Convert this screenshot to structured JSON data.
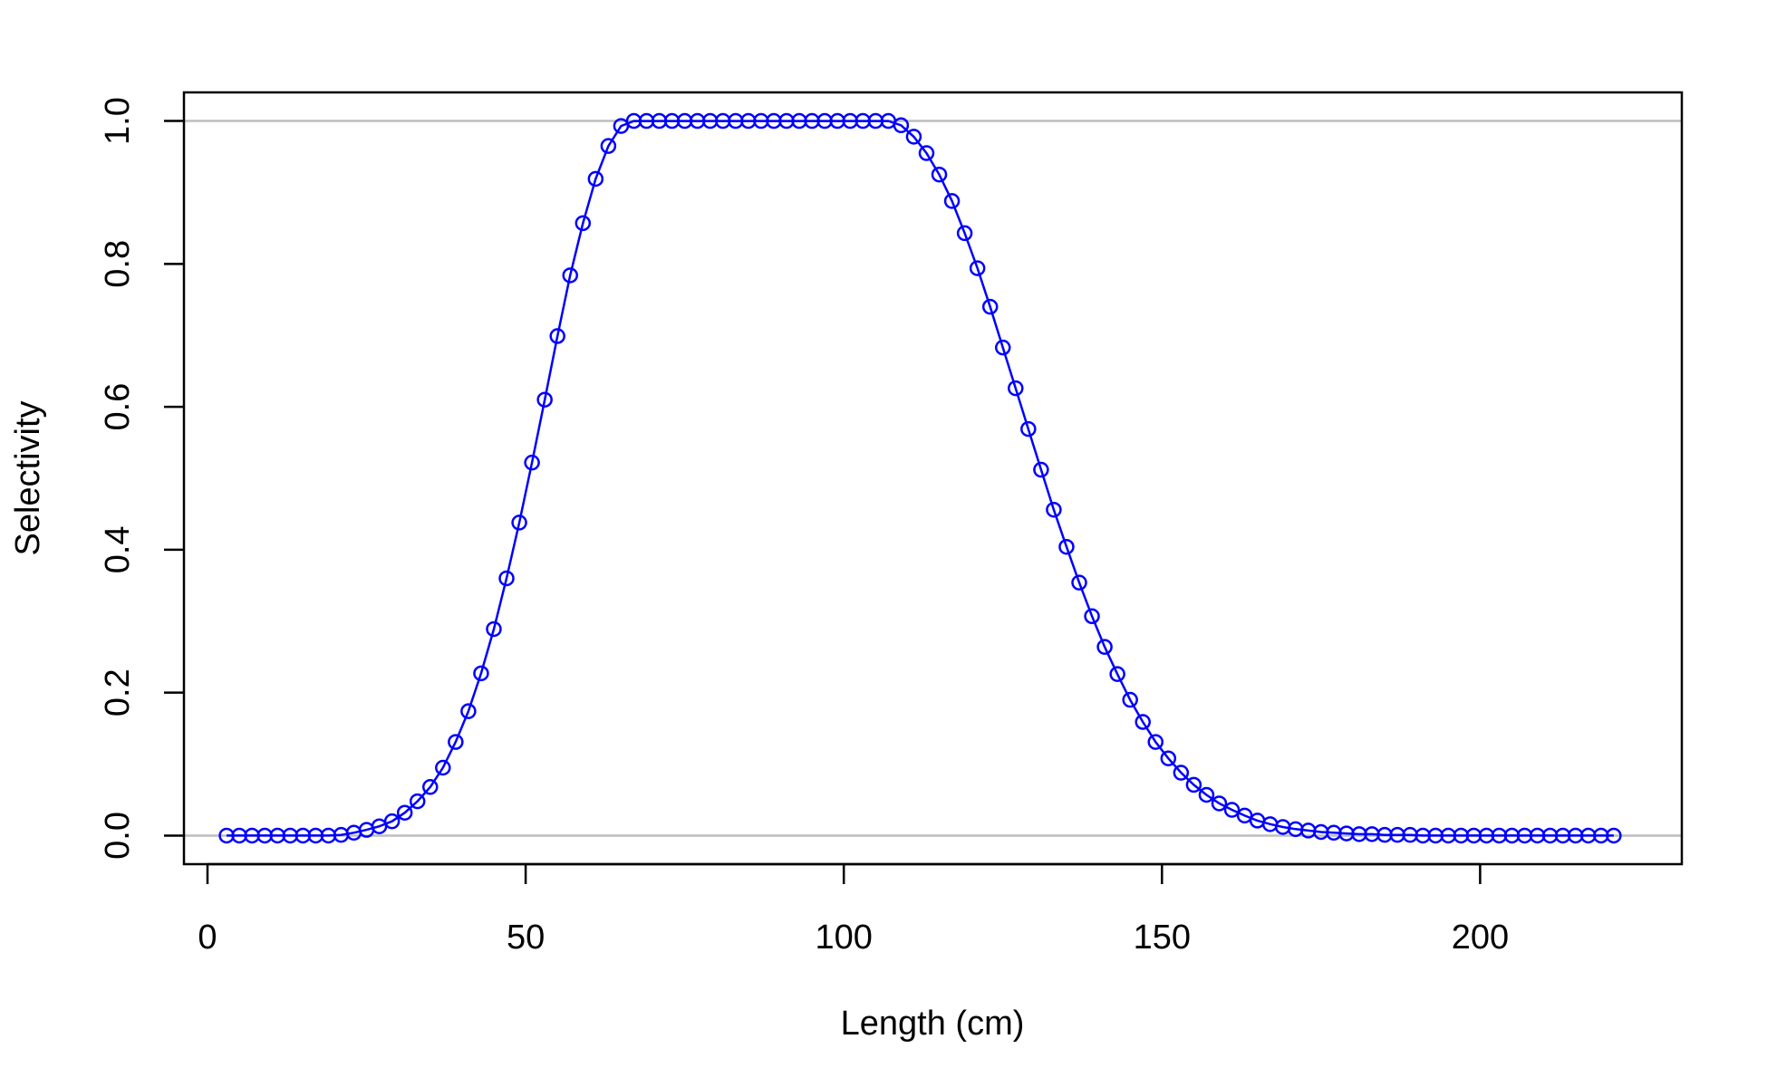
{
  "chart_data": {
    "type": "line",
    "title": "",
    "xlabel": "Length (cm)",
    "ylabel": "Selectivity",
    "xlim": [
      -3.7,
      231.7
    ],
    "ylim": [
      -0.04,
      1.04
    ],
    "x_ticks": [
      0,
      50,
      100,
      150,
      200
    ],
    "y_ticks": [
      0.0,
      0.2,
      0.4,
      0.6,
      0.8,
      1.0
    ],
    "x_tick_labels": [
      "0",
      "50",
      "100",
      "150",
      "200"
    ],
    "y_tick_labels": [
      "0.0",
      "0.2",
      "0.4",
      "0.6",
      "0.8",
      "1.0"
    ],
    "reference_lines": [
      0,
      1
    ],
    "reference_line_color": "#bebebe",
    "grid": false,
    "legend": "none",
    "series": [
      {
        "color": "#0000ff",
        "marker": "open-circle",
        "line": true,
        "x": [
          3,
          5,
          7,
          9,
          11,
          13,
          15,
          17,
          19,
          21,
          23,
          25,
          27,
          29,
          31,
          33,
          35,
          37,
          39,
          41,
          43,
          45,
          47,
          49,
          51,
          53,
          55,
          57,
          59,
          61,
          63,
          65,
          67,
          69,
          71,
          73,
          75,
          77,
          79,
          81,
          83,
          85,
          87,
          89,
          91,
          93,
          95,
          97,
          99,
          101,
          103,
          105,
          107,
          109,
          111,
          113,
          115,
          117,
          119,
          121,
          123,
          125,
          127,
          129,
          131,
          133,
          135,
          137,
          139,
          141,
          143,
          145,
          147,
          149,
          151,
          153,
          155,
          157,
          159,
          161,
          163,
          165,
          167,
          169,
          171,
          173,
          175,
          177,
          179,
          181,
          183,
          185,
          187,
          189,
          191,
          193,
          195,
          197,
          199,
          201,
          203,
          205,
          207,
          209,
          211,
          213,
          215,
          217,
          219,
          221
        ],
        "y": [
          0,
          0,
          0,
          0,
          0,
          0,
          0,
          0,
          0,
          0.001,
          0.004,
          0.008,
          0.013,
          0.02,
          0.032,
          0.048,
          0.068,
          0.095,
          0.131,
          0.174,
          0.227,
          0.289,
          0.36,
          0.438,
          0.522,
          0.61,
          0.699,
          0.784,
          0.857,
          0.919,
          0.965,
          0.993,
          1,
          1,
          1,
          1,
          1,
          1,
          1,
          1,
          1,
          1,
          1,
          1,
          1,
          1,
          1,
          1,
          1,
          1,
          1,
          1,
          1,
          0.994,
          0.978,
          0.955,
          0.925,
          0.888,
          0.843,
          0.794,
          0.74,
          0.683,
          0.626,
          0.569,
          0.512,
          0.456,
          0.404,
          0.354,
          0.307,
          0.264,
          0.226,
          0.19,
          0.159,
          0.131,
          0.108,
          0.088,
          0.071,
          0.057,
          0.045,
          0.036,
          0.028,
          0.021,
          0.016,
          0.012,
          0.009,
          0.007,
          0.005,
          0.004,
          0.003,
          0.002,
          0.002,
          0.001,
          0.001,
          0.001,
          0,
          0,
          0,
          0,
          0,
          0,
          0,
          0,
          0,
          0,
          0,
          0,
          0,
          0,
          0,
          0
        ]
      }
    ]
  }
}
